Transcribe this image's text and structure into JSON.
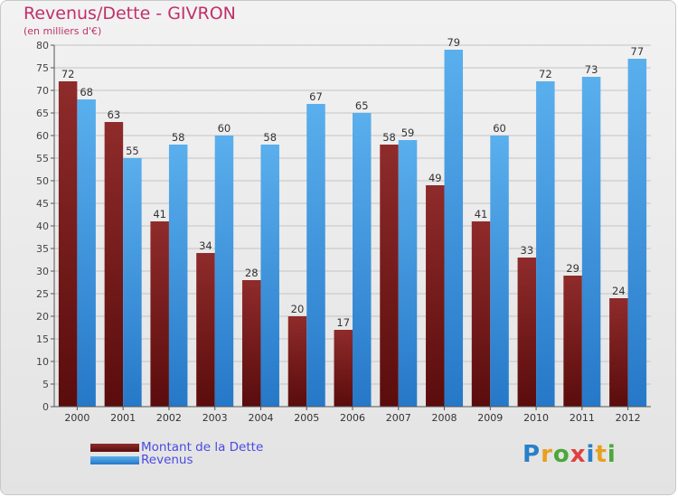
{
  "chart_data": {
    "type": "bar",
    "title": "Revenus/Dette - GIVRON",
    "subtitle": "(en milliers d'€)",
    "categories": [
      "2000",
      "2001",
      "2002",
      "2003",
      "2004",
      "2005",
      "2006",
      "2007",
      "2008",
      "2009",
      "2010",
      "2011",
      "2012"
    ],
    "series": [
      {
        "name": "Montant de la Dette",
        "color": "#7a1e1e",
        "values": [
          72,
          63,
          41,
          34,
          28,
          20,
          17,
          58,
          49,
          41,
          33,
          29,
          24
        ]
      },
      {
        "name": "Revenus",
        "color": "#3c9ae6",
        "values": [
          68,
          55,
          58,
          60,
          58,
          67,
          65,
          59,
          79,
          60,
          72,
          73,
          77
        ]
      }
    ],
    "ylim": [
      0,
      80
    ],
    "ytick_step": 5,
    "grid": true,
    "legend_position": "bottom-left"
  },
  "logo": {
    "text": "Proxiti"
  }
}
